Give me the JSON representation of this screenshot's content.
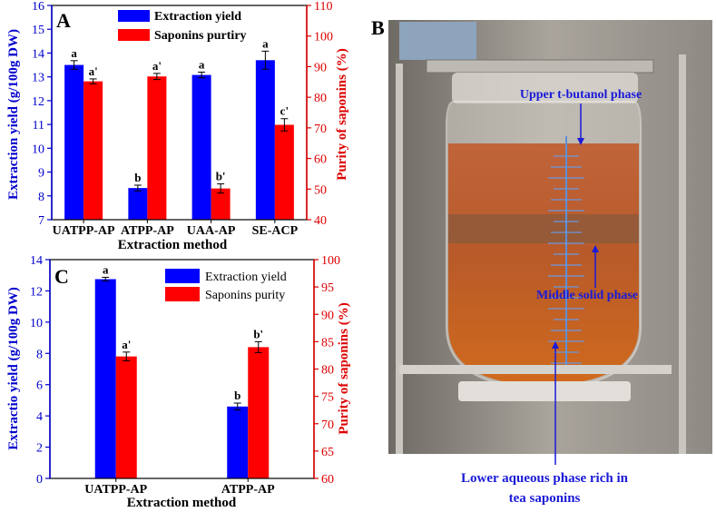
{
  "panelA": {
    "label": "A",
    "chart_data": {
      "type": "bar",
      "categories": [
        "UATPP-AP",
        "ATPP-AP",
        "UAA-AP",
        "SE-ACP"
      ],
      "xlabel": "Extraction method",
      "ylabel": "Extraction yield (g/100g DW)",
      "y2label": "Purity of saponins (%)",
      "ylim": [
        7,
        16
      ],
      "y2lim": [
        40,
        110
      ],
      "yticks": [
        7,
        8,
        9,
        10,
        11,
        12,
        13,
        14,
        15,
        16
      ],
      "y2ticks": [
        40,
        50,
        60,
        70,
        80,
        90,
        100,
        110
      ],
      "legend_position": "top-center",
      "series": [
        {
          "name": "Extraction yield",
          "axis": "left",
          "color": "#0000ff",
          "values": [
            13.5,
            8.33,
            13.08,
            13.7
          ],
          "errors": [
            0.18,
            0.12,
            0.12,
            0.38
          ],
          "labels": [
            "a",
            "b",
            "a",
            "a"
          ]
        },
        {
          "name": "Saponins purtiry",
          "axis": "right",
          "color": "#ff0000",
          "values": [
            85.2,
            86.8,
            50.2,
            71.0
          ],
          "errors": [
            0.8,
            1.0,
            1.5,
            2.0
          ],
          "labels": [
            "a'",
            "a'",
            "b'",
            "c'"
          ]
        }
      ]
    }
  },
  "panelC": {
    "label": "C",
    "chart_data": {
      "type": "bar",
      "categories": [
        "UATPP-AP",
        "ATPP-AP"
      ],
      "xlabel": "Extraction method",
      "ylabel": "Extractio yield (g/100g DW)",
      "y2label": "Purity of saponins (%)",
      "ylim": [
        0,
        14
      ],
      "y2lim": [
        60,
        100
      ],
      "yticks": [
        0,
        2,
        4,
        6,
        8,
        10,
        12,
        14
      ],
      "y2ticks": [
        60,
        65,
        70,
        75,
        80,
        85,
        90,
        95,
        100
      ],
      "legend_position": "top-center",
      "series": [
        {
          "name": "Extraction yield",
          "axis": "left",
          "color": "#0000ff",
          "values": [
            12.75,
            4.6
          ],
          "errors": [
            0.12,
            0.22
          ],
          "labels": [
            "a",
            "b"
          ]
        },
        {
          "name": "Saponins purity",
          "axis": "right",
          "color": "#ff0000",
          "values": [
            82.3,
            84.0
          ],
          "errors": [
            0.8,
            1.0
          ],
          "labels": [
            "a'",
            "b'"
          ]
        }
      ]
    }
  },
  "panelB": {
    "label": "B",
    "annotations": {
      "upper": "Upper t-butanol phase",
      "middle": "Middle solid phase",
      "lower_line1": "Lower aqueous phase rich in",
      "lower_line2": "tea saponins"
    }
  }
}
